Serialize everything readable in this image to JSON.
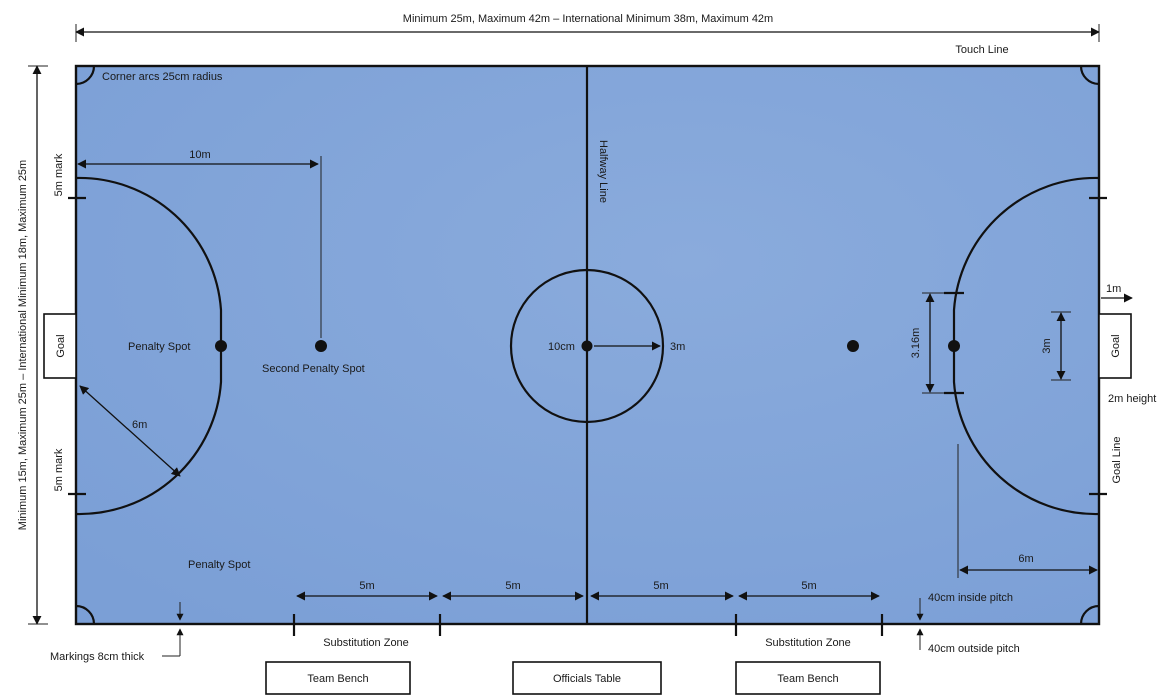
{
  "colors": {
    "pitch": "#7b9fd6",
    "pitch_light": "#8aabdc",
    "line": "#111111"
  },
  "labels": {
    "top_dimension": "Minimum 25m, Maximum 42m – International Minimum 38m, Maximum 42m",
    "touch_line": "Touch Line",
    "left_dimension": "Minimum 15m, Maximum 25m – International Minimum 18m, Maximum 25m",
    "corner_arcs": "Corner arcs 25cm radius",
    "five_m_mark_top": "5m mark",
    "five_m_mark_bottom": "5m mark",
    "ten_m": "10m",
    "halfway_line": "Halfway Line",
    "goal_left": "Goal",
    "goal_right": "Goal",
    "penalty_spot": "Penalty Spot",
    "second_penalty_spot": "Second Penalty Spot",
    "six_m_left": "6m",
    "ten_cm": "10cm",
    "three_m_radius": "3m",
    "three_16_m": "3.16m",
    "three_m_goal": "3m",
    "one_m": "1m",
    "two_m_height": "2m height",
    "goal_line": "Goal Line",
    "six_m_right": "6m",
    "penalty_spot_bottom": "Penalty Spot",
    "five_m_a": "5m",
    "five_m_b": "5m",
    "five_m_c": "5m",
    "five_m_d": "5m",
    "forty_cm_inside": "40cm inside pitch",
    "forty_cm_outside": "40cm outside pitch",
    "markings": "Markings 8cm thick",
    "substitution_zone_left": "Substitution Zone",
    "substitution_zone_right": "Substitution Zone",
    "team_bench_left": "Team Bench",
    "officials_table": "Officials Table",
    "team_bench_right": "Team Bench"
  }
}
